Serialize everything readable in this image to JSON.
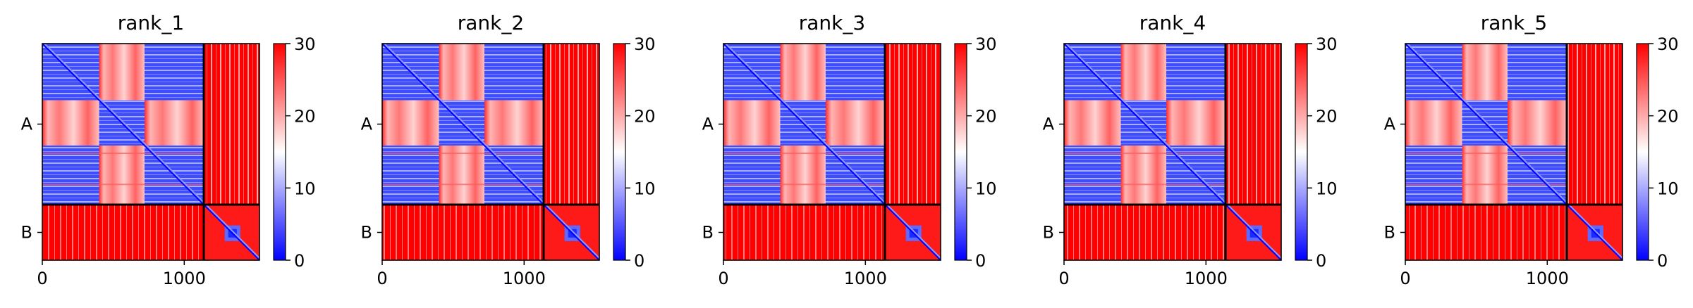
{
  "chart_data": [
    {
      "type": "heatmap",
      "title": "rank_1",
      "x_ticks": [
        "0",
        "1000"
      ],
      "row_labels": [
        "A",
        "B"
      ],
      "colorbar": {
        "ticks": [
          "0",
          "10",
          "20",
          "30"
        ],
        "range": [
          0,
          30
        ],
        "colormap": "bwr"
      },
      "chain_lengths": {
        "A": 1140,
        "B": 390
      },
      "x_range": [
        0,
        1530
      ]
    },
    {
      "type": "heatmap",
      "title": "rank_2",
      "x_ticks": [
        "0",
        "1000"
      ],
      "row_labels": [
        "A",
        "B"
      ],
      "colorbar": {
        "ticks": [
          "0",
          "10",
          "20",
          "30"
        ],
        "range": [
          0,
          30
        ],
        "colormap": "bwr"
      },
      "chain_lengths": {
        "A": 1140,
        "B": 390
      },
      "x_range": [
        0,
        1530
      ]
    },
    {
      "type": "heatmap",
      "title": "rank_3",
      "x_ticks": [
        "0",
        "1000"
      ],
      "row_labels": [
        "A",
        "B"
      ],
      "colorbar": {
        "ticks": [
          "0",
          "10",
          "20",
          "30"
        ],
        "range": [
          0,
          30
        ],
        "colormap": "bwr"
      },
      "chain_lengths": {
        "A": 1140,
        "B": 390
      },
      "x_range": [
        0,
        1530
      ]
    },
    {
      "type": "heatmap",
      "title": "rank_4",
      "x_ticks": [
        "0",
        "1000"
      ],
      "row_labels": [
        "A",
        "B"
      ],
      "colorbar": {
        "ticks": [
          "0",
          "10",
          "20",
          "30"
        ],
        "range": [
          0,
          30
        ],
        "colormap": "bwr"
      },
      "chain_lengths": {
        "A": 1140,
        "B": 390
      },
      "x_range": [
        0,
        1530
      ]
    },
    {
      "type": "heatmap",
      "title": "rank_5",
      "x_ticks": [
        "0",
        "1000"
      ],
      "row_labels": [
        "A",
        "B"
      ],
      "colorbar": {
        "ticks": [
          "0",
          "10",
          "20",
          "30"
        ],
        "range": [
          0,
          30
        ],
        "colormap": "bwr"
      },
      "chain_lengths": {
        "A": 1140,
        "B": 390
      },
      "x_range": [
        0,
        1530
      ]
    }
  ],
  "colors": {
    "low": "#0000ff",
    "mid": "#ffffff",
    "high": "#ff0000",
    "divider": "#000000"
  }
}
